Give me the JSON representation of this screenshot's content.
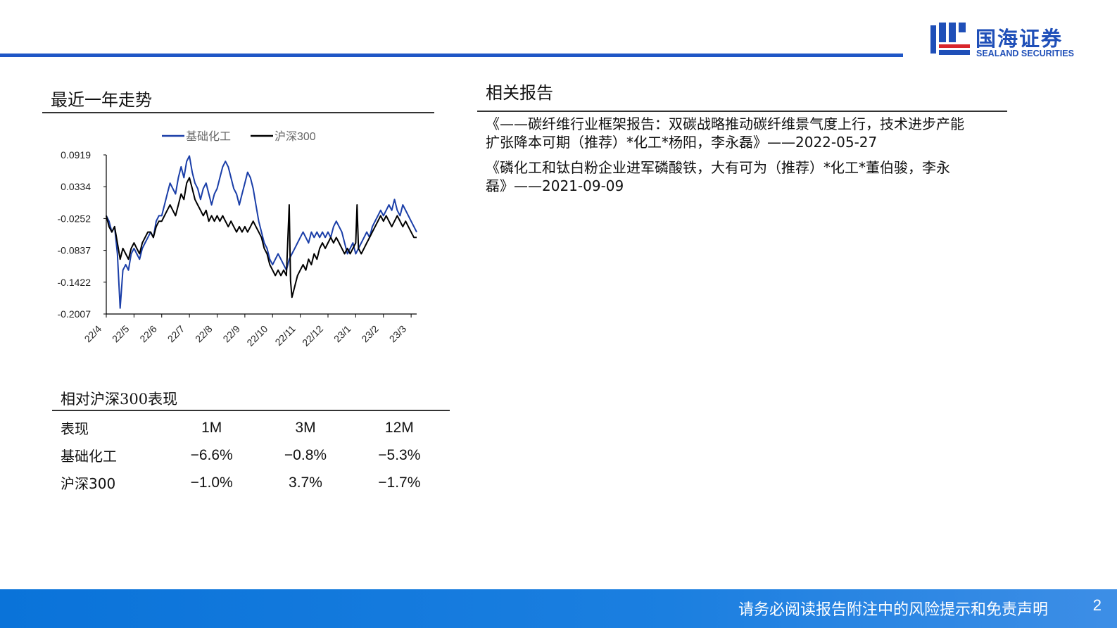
{
  "header": {
    "logo_cn": "国海证券",
    "logo_en": "SEALAND SECURITIES",
    "brand_color": "#1f4fb8",
    "logo_icon": "sealand-logo-icon"
  },
  "trend": {
    "title": "最近一年走势"
  },
  "chart_data": {
    "type": "line",
    "title": "",
    "xlabel": "",
    "ylabel": "",
    "x_tick_labels": [
      "22/4",
      "22/5",
      "22/6",
      "22/7",
      "22/8",
      "22/9",
      "22/10",
      "22/11",
      "22/12",
      "23/1",
      "23/2",
      "23/3"
    ],
    "y_tick_labels": [
      "0.0919",
      "0.0334",
      "-0.0252",
      "-0.0837",
      "-0.1422",
      "-0.2007"
    ],
    "ylim": [
      -0.2007,
      0.0919
    ],
    "grid": false,
    "legend_position": "top",
    "x_unit": "month index from 22/4",
    "series": [
      {
        "name": "基础化工",
        "color": "#1a3ea8",
        "points": [
          [
            0.0,
            -0.02
          ],
          [
            0.1,
            -0.03
          ],
          [
            0.2,
            -0.05
          ],
          [
            0.3,
            -0.04
          ],
          [
            0.4,
            -0.09
          ],
          [
            0.5,
            -0.19
          ],
          [
            0.6,
            -0.12
          ],
          [
            0.7,
            -0.11
          ],
          [
            0.8,
            -0.12
          ],
          [
            0.9,
            -0.09
          ],
          [
            1.0,
            -0.08
          ],
          [
            1.1,
            -0.09
          ],
          [
            1.2,
            -0.1
          ],
          [
            1.3,
            -0.08
          ],
          [
            1.4,
            -0.07
          ],
          [
            1.5,
            -0.06
          ],
          [
            1.6,
            -0.05
          ],
          [
            1.7,
            -0.06
          ],
          [
            1.8,
            -0.03
          ],
          [
            1.9,
            -0.02
          ],
          [
            2.0,
            -0.02
          ],
          [
            2.1,
            0.0
          ],
          [
            2.2,
            0.02
          ],
          [
            2.3,
            0.04
          ],
          [
            2.4,
            0.03
          ],
          [
            2.5,
            0.02
          ],
          [
            2.6,
            0.05
          ],
          [
            2.7,
            0.07
          ],
          [
            2.8,
            0.05
          ],
          [
            2.9,
            0.08
          ],
          [
            3.0,
            0.09
          ],
          [
            3.1,
            0.06
          ],
          [
            3.2,
            0.04
          ],
          [
            3.3,
            0.03
          ],
          [
            3.4,
            0.01
          ],
          [
            3.5,
            0.03
          ],
          [
            3.6,
            0.04
          ],
          [
            3.7,
            0.02
          ],
          [
            3.8,
            0.0
          ],
          [
            3.9,
            0.02
          ],
          [
            4.0,
            0.03
          ],
          [
            4.1,
            0.05
          ],
          [
            4.2,
            0.07
          ],
          [
            4.3,
            0.08
          ],
          [
            4.4,
            0.07
          ],
          [
            4.5,
            0.05
          ],
          [
            4.6,
            0.03
          ],
          [
            4.7,
            0.02
          ],
          [
            4.8,
            0.0
          ],
          [
            4.9,
            0.02
          ],
          [
            5.0,
            0.04
          ],
          [
            5.1,
            0.06
          ],
          [
            5.2,
            0.05
          ],
          [
            5.3,
            0.03
          ],
          [
            5.4,
            0.0
          ],
          [
            5.5,
            -0.03
          ],
          [
            5.6,
            -0.05
          ],
          [
            5.7,
            -0.07
          ],
          [
            5.8,
            -0.08
          ],
          [
            5.9,
            -0.1
          ],
          [
            6.0,
            -0.11
          ],
          [
            6.1,
            -0.1
          ],
          [
            6.2,
            -0.09
          ],
          [
            6.3,
            -0.1
          ],
          [
            6.4,
            -0.11
          ],
          [
            6.5,
            -0.12
          ],
          [
            6.6,
            -0.1
          ],
          [
            6.7,
            -0.09
          ],
          [
            6.8,
            -0.08
          ],
          [
            6.9,
            -0.07
          ],
          [
            7.0,
            -0.06
          ],
          [
            7.1,
            -0.05
          ],
          [
            7.2,
            -0.06
          ],
          [
            7.3,
            -0.07
          ],
          [
            7.4,
            -0.05
          ],
          [
            7.5,
            -0.06
          ],
          [
            7.6,
            -0.05
          ],
          [
            7.7,
            -0.06
          ],
          [
            7.8,
            -0.05
          ],
          [
            7.9,
            -0.06
          ],
          [
            8.0,
            -0.05
          ],
          [
            8.1,
            -0.06
          ],
          [
            8.2,
            -0.04
          ],
          [
            8.3,
            -0.03
          ],
          [
            8.4,
            -0.04
          ],
          [
            8.5,
            -0.05
          ],
          [
            8.6,
            -0.07
          ],
          [
            8.7,
            -0.09
          ],
          [
            8.8,
            -0.08
          ],
          [
            8.9,
            -0.07
          ],
          [
            9.0,
            -0.09
          ],
          [
            9.1,
            -0.08
          ],
          [
            9.2,
            -0.07
          ],
          [
            9.3,
            -0.06
          ],
          [
            9.4,
            -0.05
          ],
          [
            9.5,
            -0.06
          ],
          [
            9.6,
            -0.04
          ],
          [
            9.7,
            -0.03
          ],
          [
            9.8,
            -0.02
          ],
          [
            9.9,
            -0.01
          ],
          [
            10.0,
            -0.02
          ],
          [
            10.1,
            -0.01
          ],
          [
            10.2,
            0.0
          ],
          [
            10.3,
            -0.01
          ],
          [
            10.4,
            0.01
          ],
          [
            10.5,
            -0.01
          ],
          [
            10.6,
            -0.02
          ],
          [
            10.7,
            0.0
          ],
          [
            10.8,
            -0.01
          ],
          [
            10.9,
            -0.02
          ],
          [
            11.0,
            -0.03
          ],
          [
            11.1,
            -0.04
          ],
          [
            11.2,
            -0.05
          ]
        ]
      },
      {
        "name": "沪深300",
        "color": "#000000",
        "points": [
          [
            0.0,
            -0.02
          ],
          [
            0.1,
            -0.04
          ],
          [
            0.2,
            -0.05
          ],
          [
            0.3,
            -0.04
          ],
          [
            0.4,
            -0.07
          ],
          [
            0.5,
            -0.1
          ],
          [
            0.6,
            -0.08
          ],
          [
            0.7,
            -0.09
          ],
          [
            0.8,
            -0.1
          ],
          [
            0.9,
            -0.08
          ],
          [
            1.0,
            -0.07
          ],
          [
            1.1,
            -0.08
          ],
          [
            1.2,
            -0.09
          ],
          [
            1.3,
            -0.07
          ],
          [
            1.4,
            -0.06
          ],
          [
            1.5,
            -0.05
          ],
          [
            1.6,
            -0.05
          ],
          [
            1.7,
            -0.06
          ],
          [
            1.8,
            -0.04
          ],
          [
            1.9,
            -0.03
          ],
          [
            2.0,
            -0.03
          ],
          [
            2.1,
            -0.02
          ],
          [
            2.2,
            -0.01
          ],
          [
            2.3,
            0.0
          ],
          [
            2.4,
            -0.01
          ],
          [
            2.5,
            -0.02
          ],
          [
            2.6,
            0.0
          ],
          [
            2.7,
            0.02
          ],
          [
            2.8,
            0.01
          ],
          [
            2.9,
            0.04
          ],
          [
            3.0,
            0.05
          ],
          [
            3.1,
            0.03
          ],
          [
            3.2,
            0.01
          ],
          [
            3.3,
            0.0
          ],
          [
            3.4,
            -0.01
          ],
          [
            3.5,
            -0.02
          ],
          [
            3.6,
            -0.01
          ],
          [
            3.7,
            -0.03
          ],
          [
            3.8,
            -0.02
          ],
          [
            3.9,
            -0.03
          ],
          [
            4.0,
            -0.02
          ],
          [
            4.1,
            -0.03
          ],
          [
            4.2,
            -0.02
          ],
          [
            4.3,
            -0.03
          ],
          [
            4.4,
            -0.04
          ],
          [
            4.5,
            -0.03
          ],
          [
            4.6,
            -0.04
          ],
          [
            4.7,
            -0.05
          ],
          [
            4.8,
            -0.04
          ],
          [
            4.9,
            -0.05
          ],
          [
            5.0,
            -0.04
          ],
          [
            5.1,
            -0.05
          ],
          [
            5.2,
            -0.04
          ],
          [
            5.3,
            -0.03
          ],
          [
            5.4,
            -0.04
          ],
          [
            5.5,
            -0.05
          ],
          [
            5.6,
            -0.06
          ],
          [
            5.7,
            -0.08
          ],
          [
            5.8,
            -0.09
          ],
          [
            5.9,
            -0.11
          ],
          [
            6.0,
            -0.12
          ],
          [
            6.1,
            -0.13
          ],
          [
            6.2,
            -0.12
          ],
          [
            6.3,
            -0.13
          ],
          [
            6.4,
            -0.12
          ],
          [
            6.5,
            -0.13
          ],
          [
            6.6,
            -0.0
          ],
          [
            6.65,
            -0.14
          ],
          [
            6.7,
            -0.17
          ],
          [
            6.8,
            -0.15
          ],
          [
            6.9,
            -0.13
          ],
          [
            7.0,
            -0.12
          ],
          [
            7.1,
            -0.11
          ],
          [
            7.2,
            -0.12
          ],
          [
            7.3,
            -0.1
          ],
          [
            7.4,
            -0.11
          ],
          [
            7.5,
            -0.09
          ],
          [
            7.6,
            -0.1
          ],
          [
            7.7,
            -0.08
          ],
          [
            7.8,
            -0.07
          ],
          [
            7.9,
            -0.08
          ],
          [
            8.0,
            -0.07
          ],
          [
            8.1,
            -0.06
          ],
          [
            8.2,
            -0.07
          ],
          [
            8.3,
            -0.06
          ],
          [
            8.4,
            -0.07
          ],
          [
            8.5,
            -0.08
          ],
          [
            8.6,
            -0.09
          ],
          [
            8.7,
            -0.08
          ],
          [
            8.8,
            -0.09
          ],
          [
            8.9,
            -0.08
          ],
          [
            9.0,
            -0.07
          ],
          [
            9.05,
            -0.0
          ],
          [
            9.1,
            -0.08
          ],
          [
            9.2,
            -0.09
          ],
          [
            9.3,
            -0.08
          ],
          [
            9.4,
            -0.07
          ],
          [
            9.5,
            -0.06
          ],
          [
            9.6,
            -0.05
          ],
          [
            9.7,
            -0.04
          ],
          [
            9.8,
            -0.03
          ],
          [
            9.9,
            -0.02
          ],
          [
            10.0,
            -0.03
          ],
          [
            10.1,
            -0.02
          ],
          [
            10.2,
            -0.03
          ],
          [
            10.3,
            -0.04
          ],
          [
            10.4,
            -0.03
          ],
          [
            10.5,
            -0.02
          ],
          [
            10.6,
            -0.03
          ],
          [
            10.7,
            -0.04
          ],
          [
            10.8,
            -0.03
          ],
          [
            10.9,
            -0.04
          ],
          [
            11.0,
            -0.05
          ],
          [
            11.1,
            -0.06
          ],
          [
            11.2,
            -0.06
          ]
        ]
      }
    ]
  },
  "performance": {
    "title": "相对沪深300表现",
    "columns": [
      "表现",
      "1M",
      "3M",
      "12M"
    ],
    "rows": [
      {
        "label": "基础化工",
        "m1": "−6.6%",
        "m3": "−0.8%",
        "m12": "−5.3%"
      },
      {
        "label": "沪深300",
        "m1": "−1.0%",
        "m3": "3.7%",
        "m12": "−1.7%"
      }
    ]
  },
  "reports": {
    "title": "相关报告",
    "items": [
      {
        "line1": "《——碳纤维行业框架报告：双碳战略推动碳纤维景气度上行，技术进步产能",
        "line2": "扩张降本可期（推荐）*化工*杨阳，李永磊》——2022-05-27"
      },
      {
        "line1": "《磷化工和钛白粉企业进军磷酸铁，大有可为（推荐）*化工*董伯骏，李永",
        "line2": "磊》——2021-09-09"
      }
    ]
  },
  "footer": {
    "disclaimer": "请务必阅读报告附注中的风险提示和免责声明",
    "page_number": "2"
  }
}
